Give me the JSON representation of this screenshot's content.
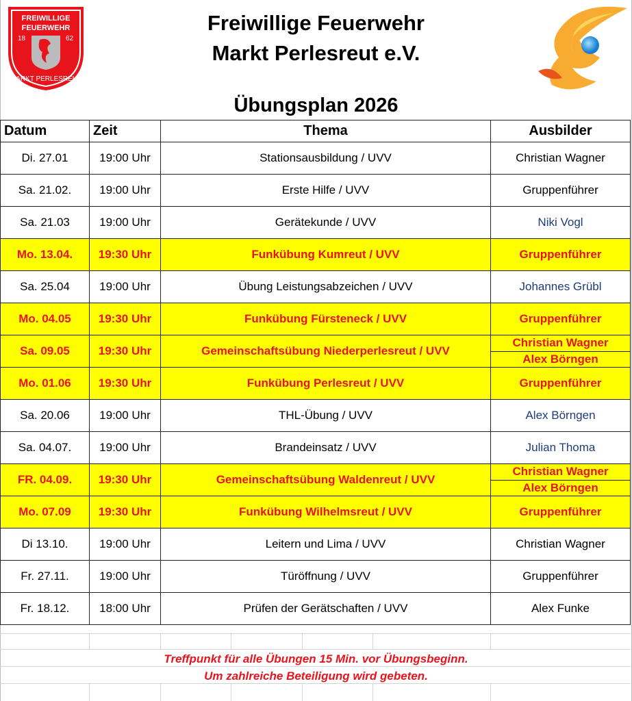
{
  "header": {
    "line1": "Freiwillige Feuerwehr",
    "line2": "Markt Perlesreut e.V.",
    "plan_title": "Übungsplan 2026",
    "logo_text": "FREIWILLIGE FEUERWEHR 18 62 MARKT PERLESREUT"
  },
  "colors": {
    "highlight": "#ffff00",
    "highlight_text": "#e8141c",
    "name_blue": "#1f3a7a"
  },
  "table": {
    "columns": [
      "Datum",
      "Zeit",
      "Thema",
      "Ausbilder"
    ],
    "rows": [
      {
        "datum": "Di. 27.01",
        "zeit": "19:00 Uhr",
        "thema": "Stationsausbildung / UVV",
        "ausbilder": [
          "Christian Wagner"
        ],
        "highlight": false,
        "blue": false
      },
      {
        "datum": "Sa. 21.02.",
        "zeit": "19:00 Uhr",
        "thema": "Erste Hilfe / UVV",
        "ausbilder": [
          "Gruppenführer"
        ],
        "highlight": false,
        "blue": false
      },
      {
        "datum": "Sa. 21.03",
        "zeit": "19:00 Uhr",
        "thema": "Gerätekunde / UVV",
        "ausbilder": [
          "Niki Vogl"
        ],
        "highlight": false,
        "blue": true
      },
      {
        "datum": "Mo. 13.04.",
        "zeit": "19:30 Uhr",
        "thema": "Funkübung Kumreut / UVV",
        "ausbilder": [
          "Gruppenführer"
        ],
        "highlight": true,
        "blue": false
      },
      {
        "datum": "Sa. 25.04",
        "zeit": "19:00 Uhr",
        "thema": "Übung Leistungsabzeichen / UVV",
        "ausbilder": [
          "Johannes Grübl"
        ],
        "highlight": false,
        "blue": true
      },
      {
        "datum": "Mo. 04.05",
        "zeit": "19:30 Uhr",
        "thema": "Funkübung Fürsteneck / UVV",
        "ausbilder": [
          "Gruppenführer"
        ],
        "highlight": true,
        "blue": false
      },
      {
        "datum": "Sa. 09.05",
        "zeit": "19:30 Uhr",
        "thema": "Gemeinschaftsübung Niederperlesreut / UVV",
        "ausbilder": [
          "Christian Wagner",
          "Alex Börngen"
        ],
        "highlight": true,
        "blue": false
      },
      {
        "datum": "Mo. 01.06",
        "zeit": "19:30 Uhr",
        "thema": "Funkübung Perlesreut / UVV",
        "ausbilder": [
          "Gruppenführer"
        ],
        "highlight": true,
        "blue": false
      },
      {
        "datum": "Sa. 20.06",
        "zeit": "19:00 Uhr",
        "thema": "THL-Übung / UVV",
        "ausbilder": [
          "Alex Börngen"
        ],
        "highlight": false,
        "blue": true
      },
      {
        "datum": "Sa. 04.07.",
        "zeit": "19:00 Uhr",
        "thema": "Brandeinsatz / UVV",
        "ausbilder": [
          "Julian Thoma"
        ],
        "highlight": false,
        "blue": true
      },
      {
        "datum": "FR. 04.09.",
        "zeit": "19:30 Uhr",
        "thema": "Gemeinschaftsübung Waldenreut / UVV",
        "ausbilder": [
          "Christian Wagner",
          "Alex Börngen"
        ],
        "highlight": true,
        "blue": false
      },
      {
        "datum": "Mo. 07.09",
        "zeit": "19:30 Uhr",
        "thema": "Funkübung Wilhelmsreut / UVV",
        "ausbilder": [
          "Gruppenführer"
        ],
        "highlight": true,
        "blue": false
      },
      {
        "datum": "Di 13.10.",
        "zeit": "19:00 Uhr",
        "thema": "Leitern und Lima / UVV",
        "ausbilder": [
          "Christian Wagner"
        ],
        "highlight": false,
        "blue": false
      },
      {
        "datum": "Fr. 27.11.",
        "zeit": "19:00 Uhr",
        "thema": "Türöffnung / UVV",
        "ausbilder": [
          "Gruppenführer"
        ],
        "highlight": false,
        "blue": false
      },
      {
        "datum": "Fr. 18.12.",
        "zeit": "18:00 Uhr",
        "thema": "Prüfen der Gerätschaften / UVV",
        "ausbilder": [
          "Alex Funke"
        ],
        "highlight": false,
        "blue": false
      }
    ]
  },
  "notes": {
    "line1": "Treffpunkt für alle Übungen 15 Min. vor Übungsbeginn.",
    "line2": "Um zahlreiche Beteiligung wird gebeten."
  }
}
